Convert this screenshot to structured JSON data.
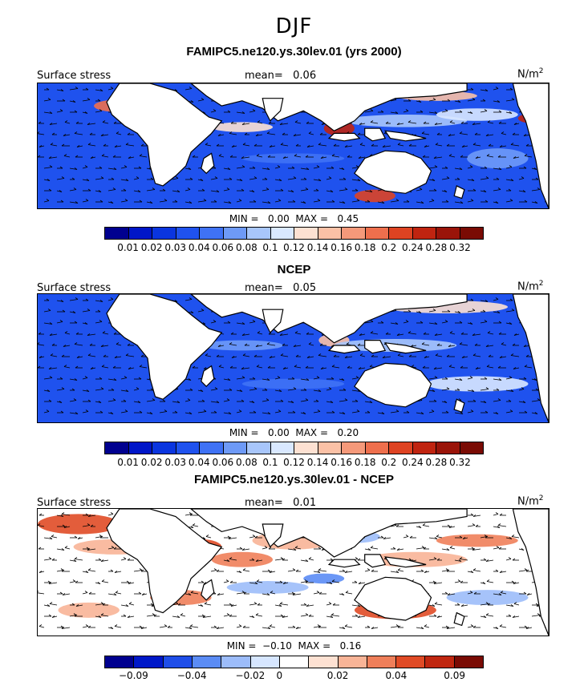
{
  "figure_title": "DJF",
  "units_label": "N/m",
  "units_superscript": "2",
  "panels": [
    {
      "title": "FAMIPC5.ne120.ys.30lev.01 (yrs 2000)",
      "field_label": "Surface stress",
      "mean_label": "mean=   0.06",
      "minmax_label": "MIN =   0.00  MAX =   0.45",
      "colorbar_ticks": [
        "0.01",
        "0.02",
        "0.03",
        "0.04",
        "0.06",
        "0.08",
        "0.1",
        "0.12",
        "0.14",
        "0.16",
        "0.18",
        "0.2",
        "0.24",
        "0.28",
        "0.32"
      ],
      "palette": "blue_red"
    },
    {
      "title": "NCEP",
      "field_label": "Surface stress",
      "mean_label": "mean=   0.05",
      "minmax_label": "MIN =   0.00  MAX =   0.20",
      "colorbar_ticks": [
        "0.01",
        "0.02",
        "0.03",
        "0.04",
        "0.06",
        "0.08",
        "0.1",
        "0.12",
        "0.14",
        "0.16",
        "0.18",
        "0.2",
        "0.24",
        "0.28",
        "0.32"
      ],
      "palette": "blue_red"
    },
    {
      "title": "FAMIPC5.ne120.ys.30lev.01 - NCEP",
      "field_label": "Surface stress",
      "mean_label": "mean=   0.01",
      "minmax_label": "MIN =  −0.10  MAX =   0.16",
      "colorbar_ticks": [
        "−0.09",
        "−0.04",
        "−0.02",
        "0",
        "0.02",
        "0.04",
        "0.09"
      ],
      "palette": "diverging"
    }
  ],
  "colors": {
    "blue_red": [
      "#00008f",
      "#0016c8",
      "#0a35df",
      "#1f52ee",
      "#3f72f5",
      "#6e9af7",
      "#a8c6fb",
      "#d9e8ff",
      "#fde1d2",
      "#fbc1a6",
      "#f5997a",
      "#ee6f4d",
      "#de4322",
      "#c02410",
      "#9a1409",
      "#7a0b04"
    ],
    "diverging": [
      "#00008f",
      "#0018c8",
      "#1f4ee8",
      "#5b8cf5",
      "#9cbcfa",
      "#d6e6ff",
      "#ffffff",
      "#fde1d2",
      "#f8b497",
      "#ef7f5a",
      "#e04b26",
      "#c02710",
      "#7a0b04"
    ]
  }
}
